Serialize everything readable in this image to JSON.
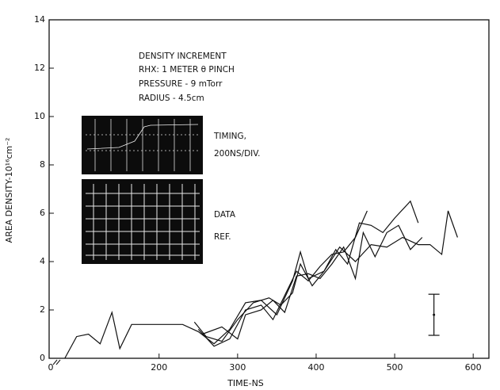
{
  "chart_data": {
    "type": "line",
    "xlabel": "TIME-NS",
    "ylabel": "AREA DENSITY-10¹⁶cm⁻²",
    "annotations": [
      "DENSITY INCREMENT",
      "RHX: 1 METER θ PINCH",
      "PRESSURE - 9 mTorr",
      "RADIUS - 4.5cm",
      "TIMING,",
      "200NS/DIV.",
      "DATA",
      "REF."
    ],
    "xlim": [
      60,
      620
    ],
    "ylim": [
      0,
      14
    ],
    "xticks": [
      0,
      200,
      300,
      400,
      500,
      600
    ],
    "yticks": [
      0,
      2,
      4,
      6,
      8,
      10,
      12,
      14
    ],
    "grid": false,
    "series": [
      {
        "color": "#111111",
        "x": [
          80,
          95,
          110,
          125,
          140,
          150,
          165,
          200,
          230,
          250,
          270,
          290,
          310,
          330,
          350,
          370,
          380,
          390,
          410,
          430,
          450,
          470,
          490,
          510,
          530,
          545,
          560,
          568,
          580
        ],
        "values": [
          0,
          0.9,
          1.0,
          0.6,
          1.9,
          0.4,
          1.4,
          1.4,
          1.4,
          1.1,
          0.6,
          1.2,
          2.3,
          2.4,
          1.8,
          3.2,
          4.4,
          3.3,
          3.6,
          4.6,
          4.0,
          4.7,
          4.6,
          5.0,
          4.7,
          4.7,
          4.3,
          6.1,
          5.0
        ]
      },
      {
        "color": "#111111",
        "x": [
          245,
          260,
          280,
          300,
          320,
          340,
          355,
          370,
          380,
          395,
          410,
          425,
          440,
          455,
          470,
          485,
          500,
          520,
          530
        ],
        "values": [
          1.5,
          0.9,
          0.7,
          1.6,
          2.3,
          2.5,
          2.2,
          2.7,
          3.9,
          3.0,
          3.6,
          4.5,
          3.9,
          5.6,
          5.5,
          5.2,
          5.8,
          6.5,
          5.6
        ]
      },
      {
        "color": "#111111",
        "x": [
          250,
          270,
          290,
          310,
          330,
          345,
          360,
          375,
          390,
          405,
          420,
          435,
          450,
          465
        ],
        "values": [
          1.2,
          0.5,
          0.8,
          2.0,
          2.2,
          1.6,
          2.6,
          3.6,
          3.2,
          3.8,
          4.3,
          4.4,
          5.0,
          6.1
        ]
      },
      {
        "color": "#111111",
        "x": [
          255,
          280,
          300,
          310,
          330,
          345,
          360,
          375,
          390,
          405,
          420,
          435,
          450,
          460,
          475,
          490,
          505,
          520,
          535
        ],
        "values": [
          1.0,
          1.3,
          0.8,
          1.8,
          2.0,
          2.4,
          1.9,
          3.4,
          3.5,
          3.3,
          3.9,
          4.6,
          3.3,
          5.2,
          4.2,
          5.2,
          5.5,
          4.5,
          5.0
        ]
      }
    ],
    "error_bar": {
      "x": 550,
      "value": 1.8,
      "error": 0.85
    }
  }
}
